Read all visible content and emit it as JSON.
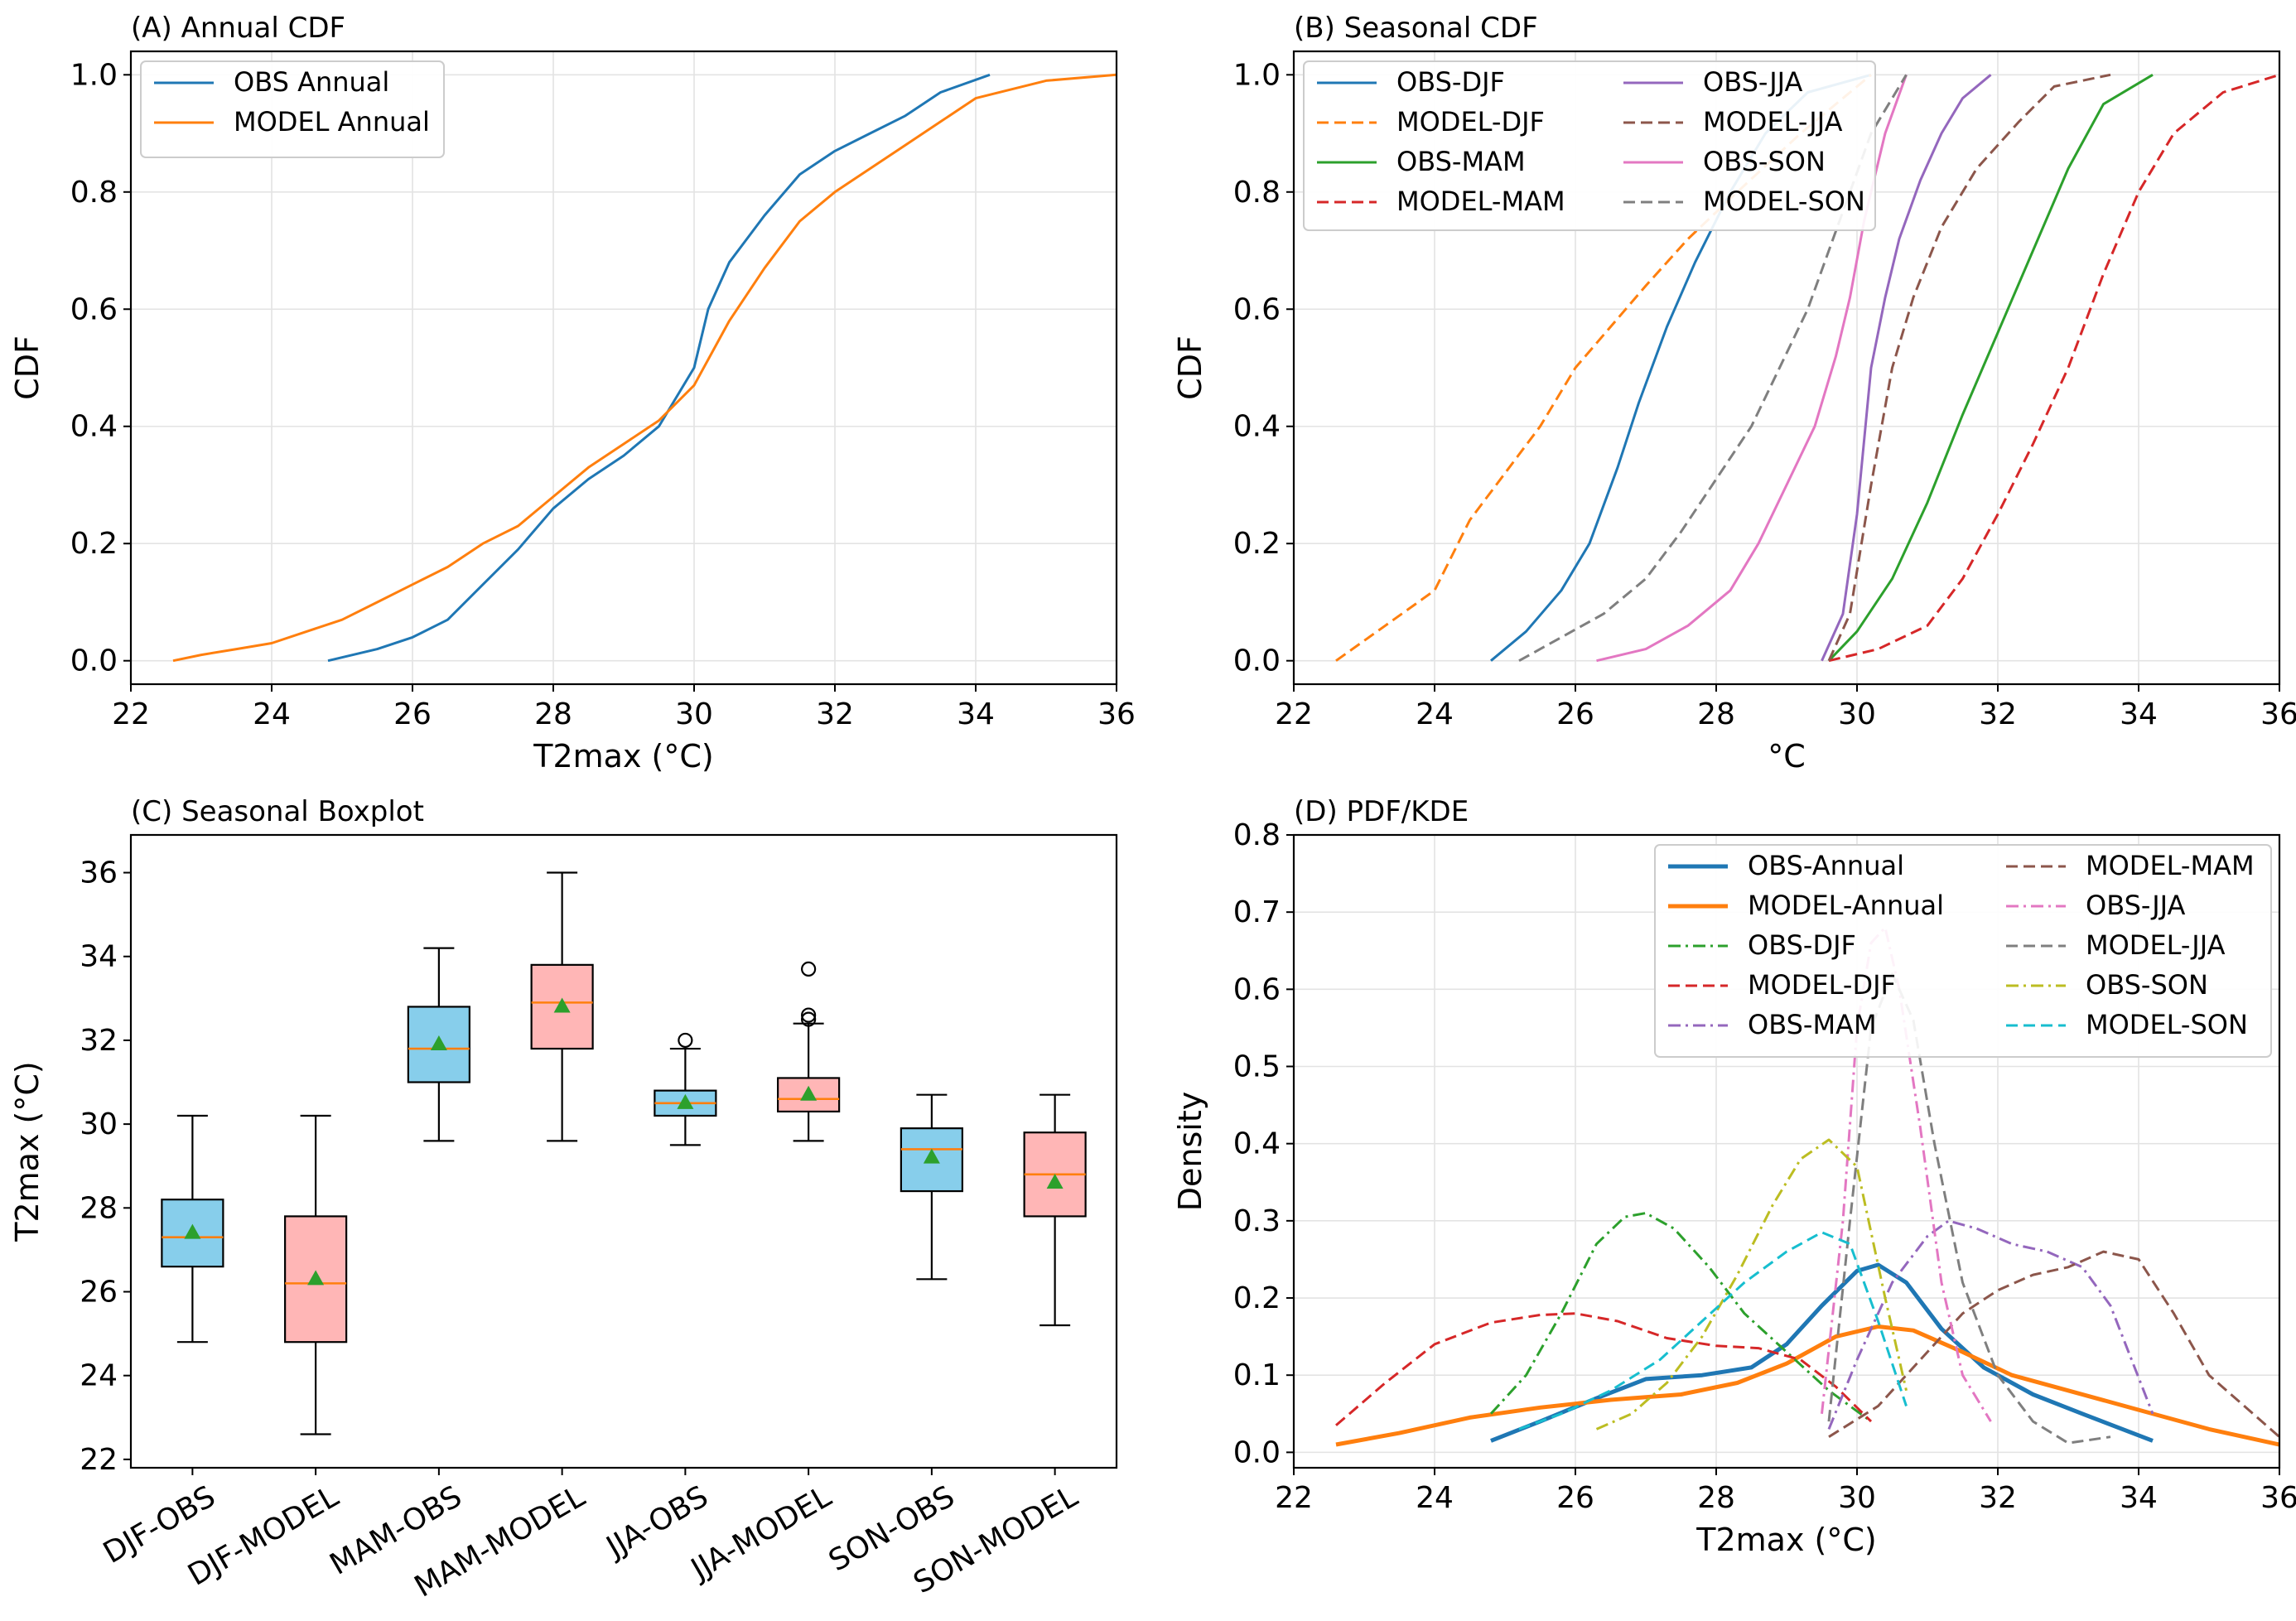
{
  "chart_data": [
    {
      "type": "line",
      "id": "A",
      "title": "(A) Annual CDF",
      "xlabel": "T2max (°C)",
      "ylabel": "CDF",
      "xlim": [
        22,
        36
      ],
      "ylim": [
        -0.04,
        1.04
      ],
      "xticks": [
        "22",
        "24",
        "26",
        "28",
        "30",
        "32",
        "34",
        "36"
      ],
      "yticks": [
        "0.0",
        "0.2",
        "0.4",
        "0.6",
        "0.8",
        "1.0"
      ],
      "grid": true,
      "legend": "top-left",
      "series": [
        {
          "name": "OBS Annual",
          "color": "#1f77b4",
          "style": "solid",
          "x": [
            24.8,
            25.5,
            26.0,
            26.5,
            27.0,
            27.5,
            28.0,
            28.5,
            29.0,
            29.5,
            30.0,
            30.2,
            30.5,
            31.0,
            31.5,
            32.0,
            32.5,
            33.0,
            33.5,
            34.2
          ],
          "y": [
            0.0,
            0.02,
            0.04,
            0.07,
            0.13,
            0.19,
            0.26,
            0.31,
            0.35,
            0.4,
            0.5,
            0.6,
            0.68,
            0.76,
            0.83,
            0.87,
            0.9,
            0.93,
            0.97,
            1.0
          ]
        },
        {
          "name": "MODEL Annual",
          "color": "#ff7f0e",
          "style": "solid",
          "x": [
            22.6,
            23.0,
            23.5,
            24.0,
            24.5,
            25.0,
            25.5,
            26.0,
            26.5,
            27.0,
            27.5,
            28.0,
            28.5,
            29.0,
            29.5,
            30.0,
            30.5,
            31.0,
            31.5,
            32.0,
            32.5,
            33.0,
            33.5,
            34.0,
            35.0,
            36.0
          ],
          "y": [
            0.0,
            0.01,
            0.02,
            0.03,
            0.05,
            0.07,
            0.1,
            0.13,
            0.16,
            0.2,
            0.23,
            0.28,
            0.33,
            0.37,
            0.41,
            0.47,
            0.58,
            0.67,
            0.75,
            0.8,
            0.84,
            0.88,
            0.92,
            0.96,
            0.99,
            1.0
          ]
        }
      ]
    },
    {
      "type": "line",
      "id": "B",
      "title": "(B) Seasonal CDF",
      "xlabel": "°C",
      "ylabel": "CDF",
      "xlim": [
        22,
        36
      ],
      "ylim": [
        -0.04,
        1.04
      ],
      "xticks": [
        "22",
        "24",
        "26",
        "28",
        "30",
        "32",
        "34",
        "36"
      ],
      "yticks": [
        "0.0",
        "0.2",
        "0.4",
        "0.6",
        "0.8",
        "1.0"
      ],
      "grid": true,
      "legend": "top-left",
      "series": [
        {
          "name": "OBS-DJF",
          "color": "#1f77b4",
          "style": "solid",
          "x": [
            24.8,
            25.3,
            25.8,
            26.2,
            26.6,
            26.9,
            27.3,
            27.7,
            28.2,
            28.7,
            29.3,
            30.2
          ],
          "y": [
            0.0,
            0.05,
            0.12,
            0.2,
            0.33,
            0.44,
            0.57,
            0.68,
            0.8,
            0.9,
            0.97,
            1.0
          ]
        },
        {
          "name": "MODEL-DJF",
          "color": "#ff7f0e",
          "style": "dashed",
          "x": [
            22.6,
            23.3,
            24.0,
            24.5,
            25.0,
            25.5,
            26.0,
            26.5,
            27.0,
            27.6,
            28.3,
            29.2,
            30.2
          ],
          "y": [
            0.0,
            0.06,
            0.12,
            0.24,
            0.32,
            0.4,
            0.5,
            0.57,
            0.64,
            0.72,
            0.8,
            0.9,
            1.0
          ]
        },
        {
          "name": "OBS-MAM",
          "color": "#2ca02c",
          "style": "solid",
          "x": [
            29.6,
            30.0,
            30.5,
            31.0,
            31.5,
            32.0,
            32.5,
            33.0,
            33.5,
            34.2
          ],
          "y": [
            0.0,
            0.05,
            0.14,
            0.27,
            0.42,
            0.56,
            0.7,
            0.84,
            0.95,
            1.0
          ]
        },
        {
          "name": "MODEL-MAM",
          "color": "#d62728",
          "style": "dashed",
          "x": [
            29.6,
            30.3,
            31.0,
            31.5,
            32.0,
            32.5,
            33.0,
            33.5,
            34.0,
            34.5,
            35.2,
            36.0
          ],
          "y": [
            0.0,
            0.02,
            0.06,
            0.14,
            0.25,
            0.37,
            0.5,
            0.66,
            0.8,
            0.9,
            0.97,
            1.0
          ]
        },
        {
          "name": "OBS-JJA",
          "color": "#9467bd",
          "style": "solid",
          "x": [
            29.5,
            29.8,
            30.0,
            30.2,
            30.4,
            30.6,
            30.9,
            31.2,
            31.5,
            31.9
          ],
          "y": [
            0.0,
            0.08,
            0.25,
            0.5,
            0.62,
            0.72,
            0.82,
            0.9,
            0.96,
            1.0
          ]
        },
        {
          "name": "MODEL-JJA",
          "color": "#8c564b",
          "style": "dashed",
          "x": [
            29.6,
            29.9,
            30.2,
            30.5,
            30.8,
            31.2,
            31.7,
            32.3,
            32.8,
            33.6
          ],
          "y": [
            0.0,
            0.08,
            0.3,
            0.5,
            0.62,
            0.74,
            0.84,
            0.92,
            0.98,
            1.0
          ]
        },
        {
          "name": "OBS-SON",
          "color": "#e377c2",
          "style": "solid",
          "x": [
            26.3,
            27.0,
            27.6,
            28.2,
            28.6,
            29.0,
            29.4,
            29.7,
            29.9,
            30.1,
            30.4,
            30.7
          ],
          "y": [
            0.0,
            0.02,
            0.06,
            0.12,
            0.2,
            0.3,
            0.4,
            0.52,
            0.62,
            0.75,
            0.9,
            1.0
          ]
        },
        {
          "name": "MODEL-SON",
          "color": "#7f7f7f",
          "style": "dashed",
          "x": [
            25.2,
            25.8,
            26.4,
            27.0,
            27.5,
            28.0,
            28.5,
            28.9,
            29.3,
            29.6,
            29.9,
            30.2,
            30.7
          ],
          "y": [
            0.0,
            0.04,
            0.08,
            0.14,
            0.22,
            0.31,
            0.4,
            0.5,
            0.6,
            0.7,
            0.8,
            0.9,
            1.0
          ]
        }
      ]
    },
    {
      "type": "box",
      "id": "C",
      "title": "(C) Seasonal Boxplot",
      "ylabel": "T2max (°C)",
      "ylim": [
        21.8,
        36.9
      ],
      "yticks": [
        "22",
        "24",
        "26",
        "28",
        "30",
        "32",
        "34",
        "36"
      ],
      "grid": false,
      "categories": [
        "DJF-OBS",
        "DJF-MODEL",
        "MAM-OBS",
        "MAM-MODEL",
        "JJA-OBS",
        "JJA-MODEL",
        "SON-OBS",
        "SON-MODEL"
      ],
      "fill_colors": [
        "#87ceeb",
        "#ffb6b6",
        "#87ceeb",
        "#ffb6b6",
        "#87ceeb",
        "#ffb6b6",
        "#87ceeb",
        "#ffb6b6"
      ],
      "boxes": [
        {
          "whislo": 24.8,
          "q1": 26.6,
          "med": 27.3,
          "q3": 28.2,
          "whishi": 30.2,
          "mean": 27.4,
          "fliers": []
        },
        {
          "whislo": 22.6,
          "q1": 24.8,
          "med": 26.2,
          "q3": 27.8,
          "whishi": 30.2,
          "mean": 26.3,
          "fliers": []
        },
        {
          "whislo": 29.6,
          "q1": 31.0,
          "med": 31.8,
          "q3": 32.8,
          "whishi": 34.2,
          "mean": 31.9,
          "fliers": []
        },
        {
          "whislo": 29.6,
          "q1": 31.8,
          "med": 32.9,
          "q3": 33.8,
          "whishi": 36.0,
          "mean": 32.8,
          "fliers": []
        },
        {
          "whislo": 29.5,
          "q1": 30.2,
          "med": 30.5,
          "q3": 30.8,
          "whishi": 31.8,
          "mean": 30.5,
          "fliers": [
            32.0
          ]
        },
        {
          "whislo": 29.6,
          "q1": 30.3,
          "med": 30.6,
          "q3": 31.1,
          "whishi": 32.4,
          "mean": 30.7,
          "fliers": [
            32.5,
            32.6,
            33.7
          ]
        },
        {
          "whislo": 26.3,
          "q1": 28.4,
          "med": 29.4,
          "q3": 29.9,
          "whishi": 30.7,
          "mean": 29.2,
          "fliers": []
        },
        {
          "whislo": 25.2,
          "q1": 27.8,
          "med": 28.8,
          "q3": 29.8,
          "whishi": 30.7,
          "mean": 28.6,
          "fliers": []
        }
      ]
    },
    {
      "type": "line",
      "id": "D",
      "title": "(D) PDF/KDE",
      "xlabel": "T2max (°C)",
      "ylabel": "Density",
      "xlim": [
        22,
        36
      ],
      "ylim": [
        -0.02,
        0.8
      ],
      "xticks": [
        "22",
        "24",
        "26",
        "28",
        "30",
        "32",
        "34",
        "36"
      ],
      "yticks": [
        "0.0",
        "0.1",
        "0.2",
        "0.3",
        "0.4",
        "0.5",
        "0.6",
        "0.7",
        "0.8"
      ],
      "grid": true,
      "legend": "top-right",
      "series": [
        {
          "name": "OBS-Annual",
          "color": "#1f77b4",
          "style": "solid",
          "width": "thick",
          "x": [
            24.8,
            25.5,
            26.3,
            27.0,
            27.8,
            28.5,
            29.0,
            29.5,
            30.0,
            30.3,
            30.7,
            31.2,
            31.8,
            32.5,
            33.2,
            34.2
          ],
          "y": [
            0.015,
            0.04,
            0.07,
            0.095,
            0.1,
            0.11,
            0.14,
            0.19,
            0.235,
            0.243,
            0.22,
            0.16,
            0.11,
            0.075,
            0.05,
            0.015
          ]
        },
        {
          "name": "MODEL-Annual",
          "color": "#ff7f0e",
          "style": "solid",
          "width": "thick",
          "x": [
            22.6,
            23.5,
            24.5,
            25.5,
            26.5,
            27.5,
            28.3,
            29.0,
            29.7,
            30.3,
            30.8,
            31.5,
            32.2,
            33.0,
            34.0,
            35.0,
            36.0
          ],
          "y": [
            0.01,
            0.025,
            0.045,
            0.058,
            0.068,
            0.075,
            0.09,
            0.115,
            0.15,
            0.163,
            0.158,
            0.13,
            0.1,
            0.08,
            0.055,
            0.03,
            0.01
          ]
        },
        {
          "name": "OBS-DJF",
          "color": "#2ca02c",
          "style": "dashdot",
          "x": [
            24.8,
            25.3,
            25.8,
            26.3,
            26.7,
            27.0,
            27.4,
            27.9,
            28.4,
            29.0,
            29.6,
            30.2
          ],
          "y": [
            0.05,
            0.1,
            0.18,
            0.27,
            0.305,
            0.31,
            0.29,
            0.24,
            0.18,
            0.13,
            0.08,
            0.04
          ]
        },
        {
          "name": "MODEL-DJF",
          "color": "#d62728",
          "style": "dashed",
          "x": [
            22.6,
            23.3,
            24.0,
            24.8,
            25.5,
            26.0,
            26.6,
            27.3,
            28.0,
            28.6,
            29.2,
            29.7,
            30.2
          ],
          "y": [
            0.035,
            0.09,
            0.14,
            0.168,
            0.178,
            0.18,
            0.17,
            0.148,
            0.138,
            0.135,
            0.12,
            0.085,
            0.04
          ]
        },
        {
          "name": "OBS-MAM",
          "color": "#9467bd",
          "style": "dashdot",
          "x": [
            29.6,
            30.0,
            30.5,
            31.0,
            31.3,
            31.7,
            32.2,
            32.7,
            33.2,
            33.6,
            34.2
          ],
          "y": [
            0.03,
            0.12,
            0.22,
            0.28,
            0.3,
            0.29,
            0.27,
            0.26,
            0.24,
            0.19,
            0.05
          ]
        },
        {
          "name": "MODEL-MAM",
          "color": "#8c564b",
          "style": "dashed",
          "x": [
            29.6,
            30.3,
            31.0,
            31.5,
            32.0,
            32.5,
            33.0,
            33.5,
            34.0,
            34.5,
            35.0,
            36.0
          ],
          "y": [
            0.02,
            0.06,
            0.13,
            0.18,
            0.21,
            0.23,
            0.24,
            0.26,
            0.25,
            0.18,
            0.1,
            0.02
          ]
        },
        {
          "name": "OBS-JJA",
          "color": "#e377c2",
          "style": "dashdot",
          "x": [
            29.5,
            29.8,
            30.0,
            30.2,
            30.4,
            30.6,
            30.9,
            31.2,
            31.5,
            31.9
          ],
          "y": [
            0.05,
            0.3,
            0.55,
            0.66,
            0.68,
            0.6,
            0.42,
            0.22,
            0.1,
            0.04
          ]
        },
        {
          "name": "MODEL-JJA",
          "color": "#7f7f7f",
          "style": "dashed",
          "x": [
            29.6,
            29.9,
            30.2,
            30.5,
            30.8,
            31.1,
            31.5,
            32.0,
            32.5,
            33.0,
            33.6
          ],
          "y": [
            0.04,
            0.3,
            0.55,
            0.62,
            0.56,
            0.4,
            0.22,
            0.1,
            0.04,
            0.012,
            0.02
          ]
        },
        {
          "name": "OBS-SON",
          "color": "#bcbd22",
          "style": "dashdot",
          "x": [
            26.3,
            26.8,
            27.3,
            27.8,
            28.3,
            28.8,
            29.2,
            29.6,
            30.0,
            30.4,
            30.7
          ],
          "y": [
            0.03,
            0.05,
            0.09,
            0.15,
            0.23,
            0.32,
            0.38,
            0.405,
            0.37,
            0.2,
            0.08
          ]
        },
        {
          "name": "MODEL-SON",
          "color": "#17becf",
          "style": "dashed",
          "x": [
            25.2,
            25.8,
            26.5,
            27.2,
            27.8,
            28.4,
            29.0,
            29.5,
            29.9,
            30.3,
            30.7
          ],
          "y": [
            0.03,
            0.05,
            0.08,
            0.12,
            0.17,
            0.22,
            0.26,
            0.285,
            0.27,
            0.17,
            0.06
          ]
        }
      ]
    }
  ]
}
